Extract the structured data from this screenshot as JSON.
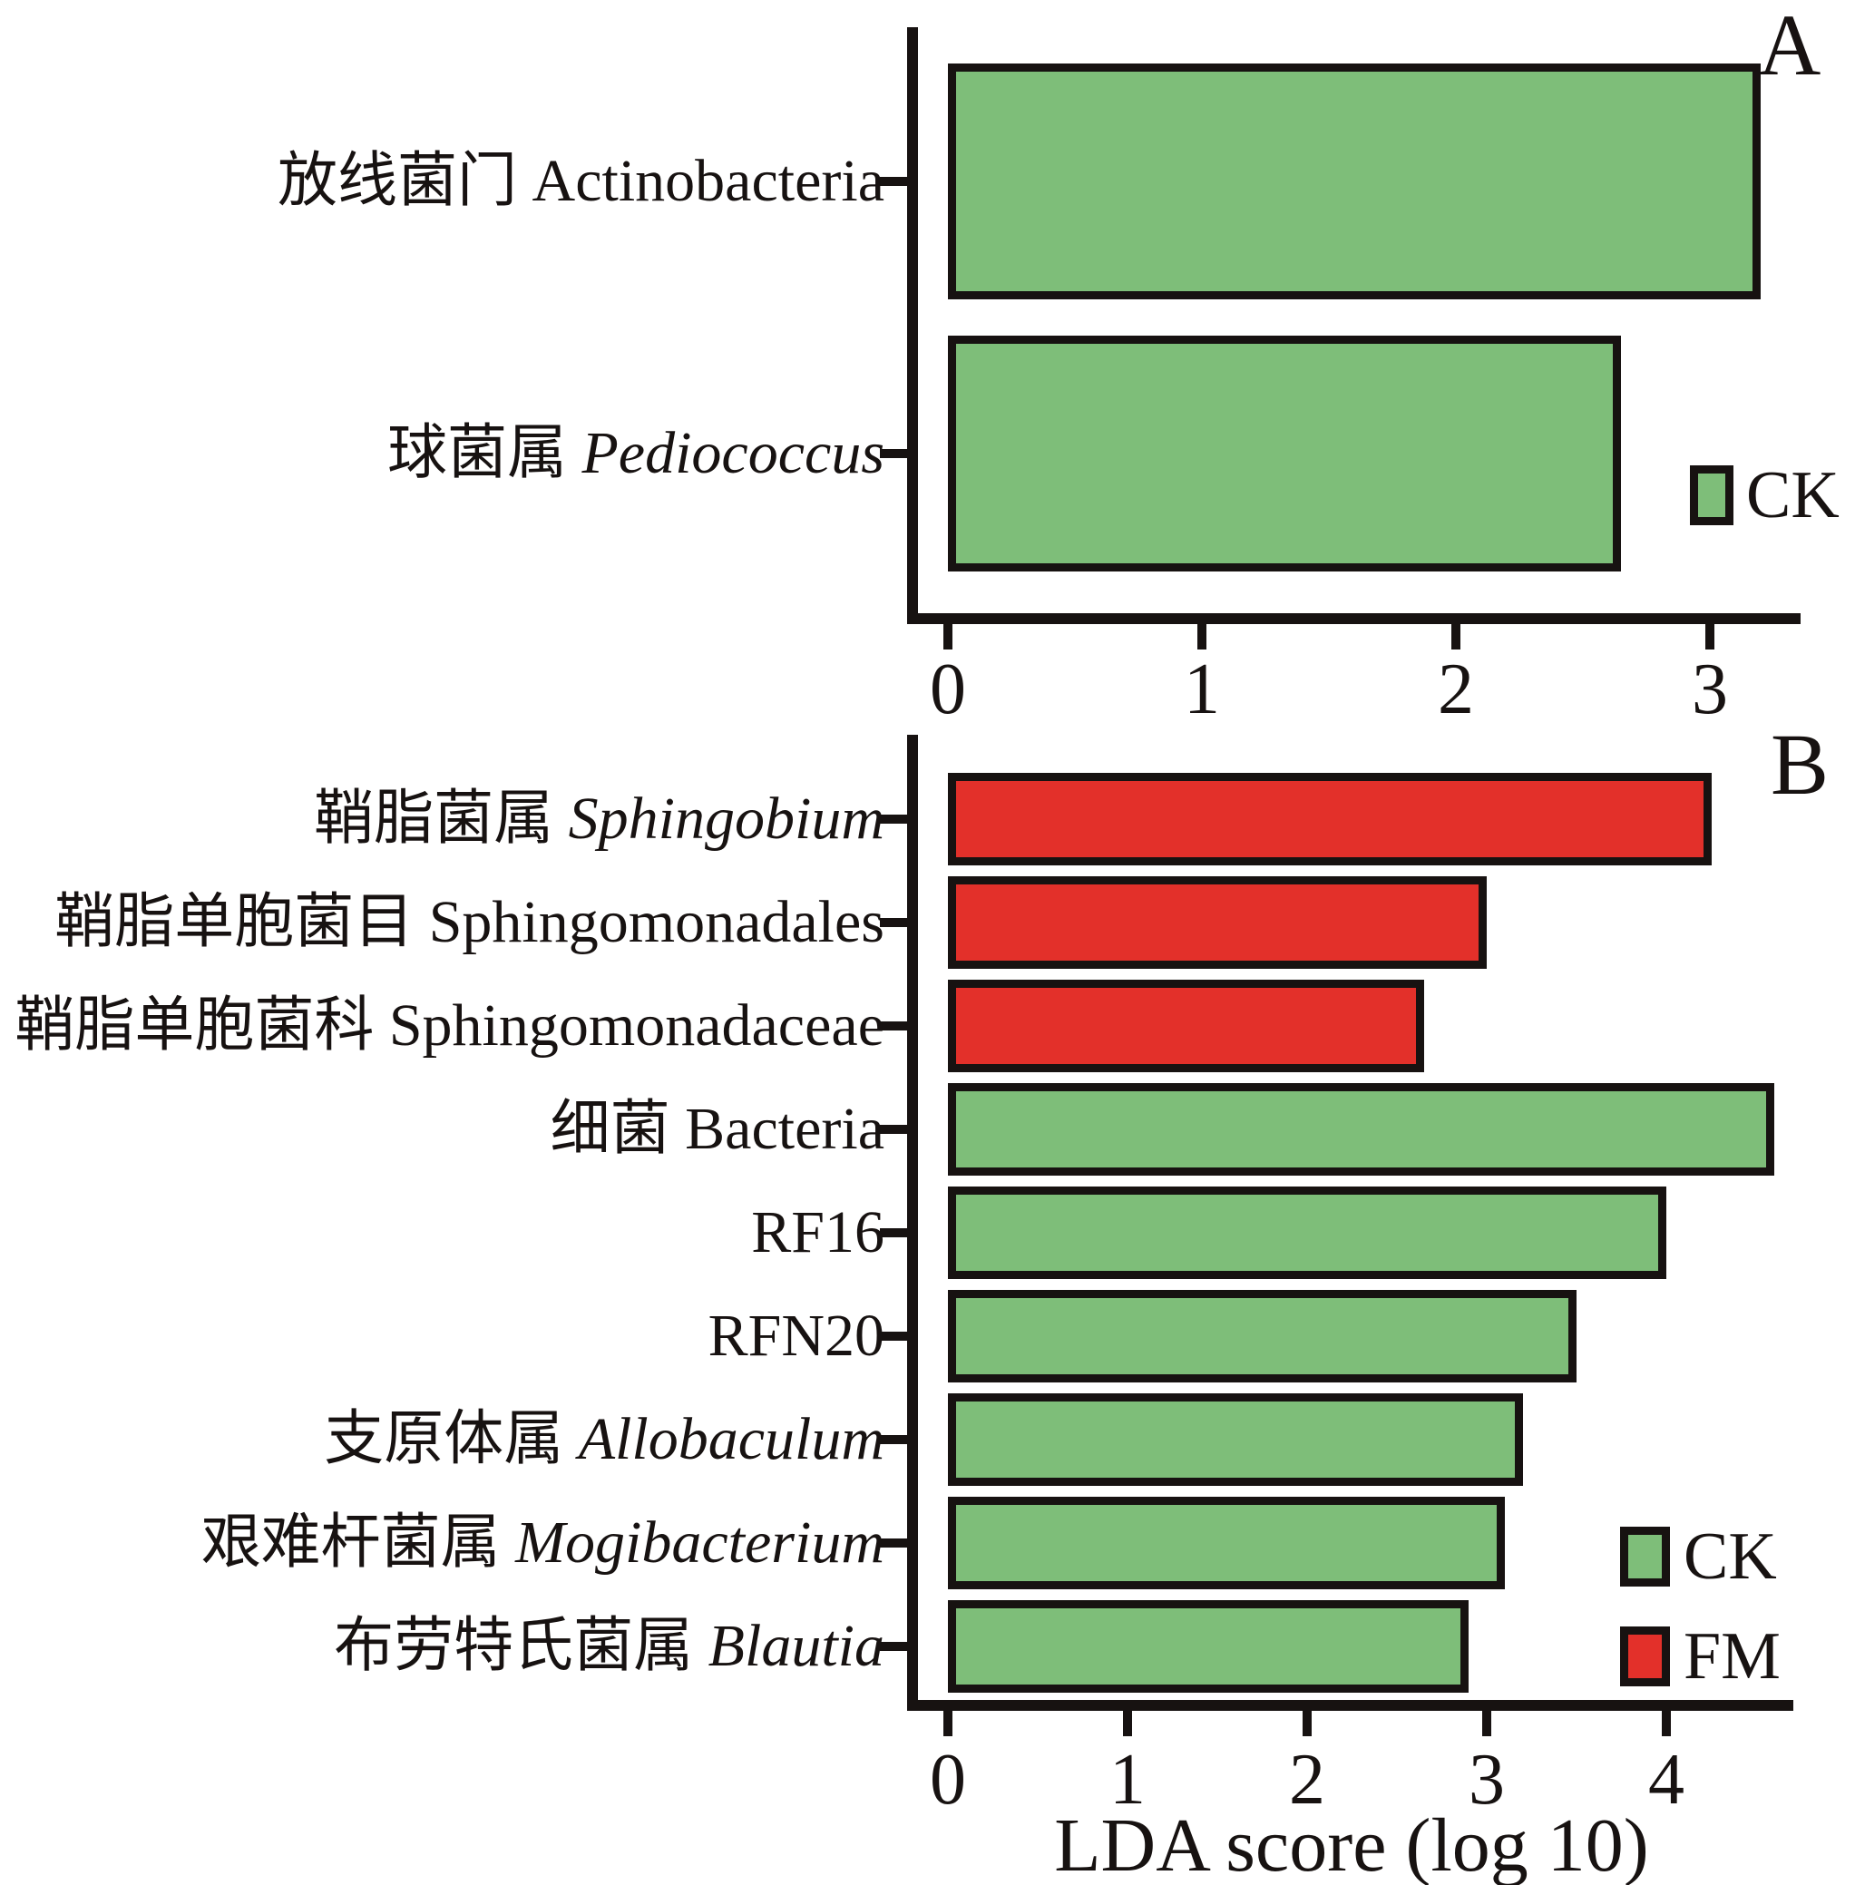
{
  "xlabel": "LDA score (log 10)",
  "colors": {
    "ck": "#7ebe79",
    "fm": "#e3302a",
    "axis": "#171211",
    "background": "#ffffff"
  },
  "legend_labels": {
    "ck": "CK",
    "fm": "FM"
  },
  "chart_data": [
    {
      "type": "bar",
      "panel": "A",
      "orientation": "horizontal",
      "title": "",
      "xlabel": "",
      "ylabel": "",
      "xlim": [
        0,
        3.35
      ],
      "x_ticks": [
        "0",
        "1",
        "2",
        "3"
      ],
      "grid": false,
      "legend_position": "right-middle",
      "legend": [
        {
          "label": "CK",
          "group": "ck"
        }
      ],
      "bars": [
        {
          "zh": "放线菌门 ",
          "latin": "Actinobacteria",
          "latin_italic": false,
          "group": "ck",
          "value": 3.2
        },
        {
          "zh": "球菌属 ",
          "latin": "Pediococcus",
          "latin_italic": true,
          "group": "ck",
          "value": 2.65
        }
      ]
    },
    {
      "type": "bar",
      "panel": "B",
      "orientation": "horizontal",
      "title": "",
      "xlabel": "LDA score (log 10)",
      "ylabel": "",
      "xlim": [
        0,
        4.7
      ],
      "x_ticks": [
        "0",
        "1",
        "2",
        "3",
        "4"
      ],
      "grid": false,
      "legend_position": "right-lower",
      "legend": [
        {
          "label": "CK",
          "group": "ck"
        },
        {
          "label": "FM",
          "group": "fm"
        }
      ],
      "bars": [
        {
          "zh": "鞘脂菌属 ",
          "latin": "Sphingobium",
          "latin_italic": true,
          "group": "fm",
          "value": 4.25
        },
        {
          "zh": "鞘脂单胞菌目 ",
          "latin": "Sphingomonadales",
          "latin_italic": false,
          "group": "fm",
          "value": 3.0
        },
        {
          "zh": "鞘脂单胞菌科 ",
          "latin": "Sphingomonadaceae",
          "latin_italic": false,
          "group": "fm",
          "value": 2.65
        },
        {
          "zh": "细菌 ",
          "latin": "Bacteria",
          "latin_italic": false,
          "group": "ck",
          "value": 4.6
        },
        {
          "zh": "",
          "latin": "RF16",
          "latin_italic": false,
          "group": "ck",
          "value": 4.0
        },
        {
          "zh": "",
          "latin": "RFN20",
          "latin_italic": false,
          "group": "ck",
          "value": 3.5
        },
        {
          "zh": "支原体属 ",
          "latin": "Allobaculum",
          "latin_italic": true,
          "group": "ck",
          "value": 3.2
        },
        {
          "zh": "艰难杆菌属 ",
          "latin": "Mogibacterium",
          "latin_italic": true,
          "group": "ck",
          "value": 3.1
        },
        {
          "zh": "布劳特氏菌属 ",
          "latin": "Blautia",
          "latin_italic": true,
          "group": "ck",
          "value": 2.9
        }
      ]
    }
  ]
}
